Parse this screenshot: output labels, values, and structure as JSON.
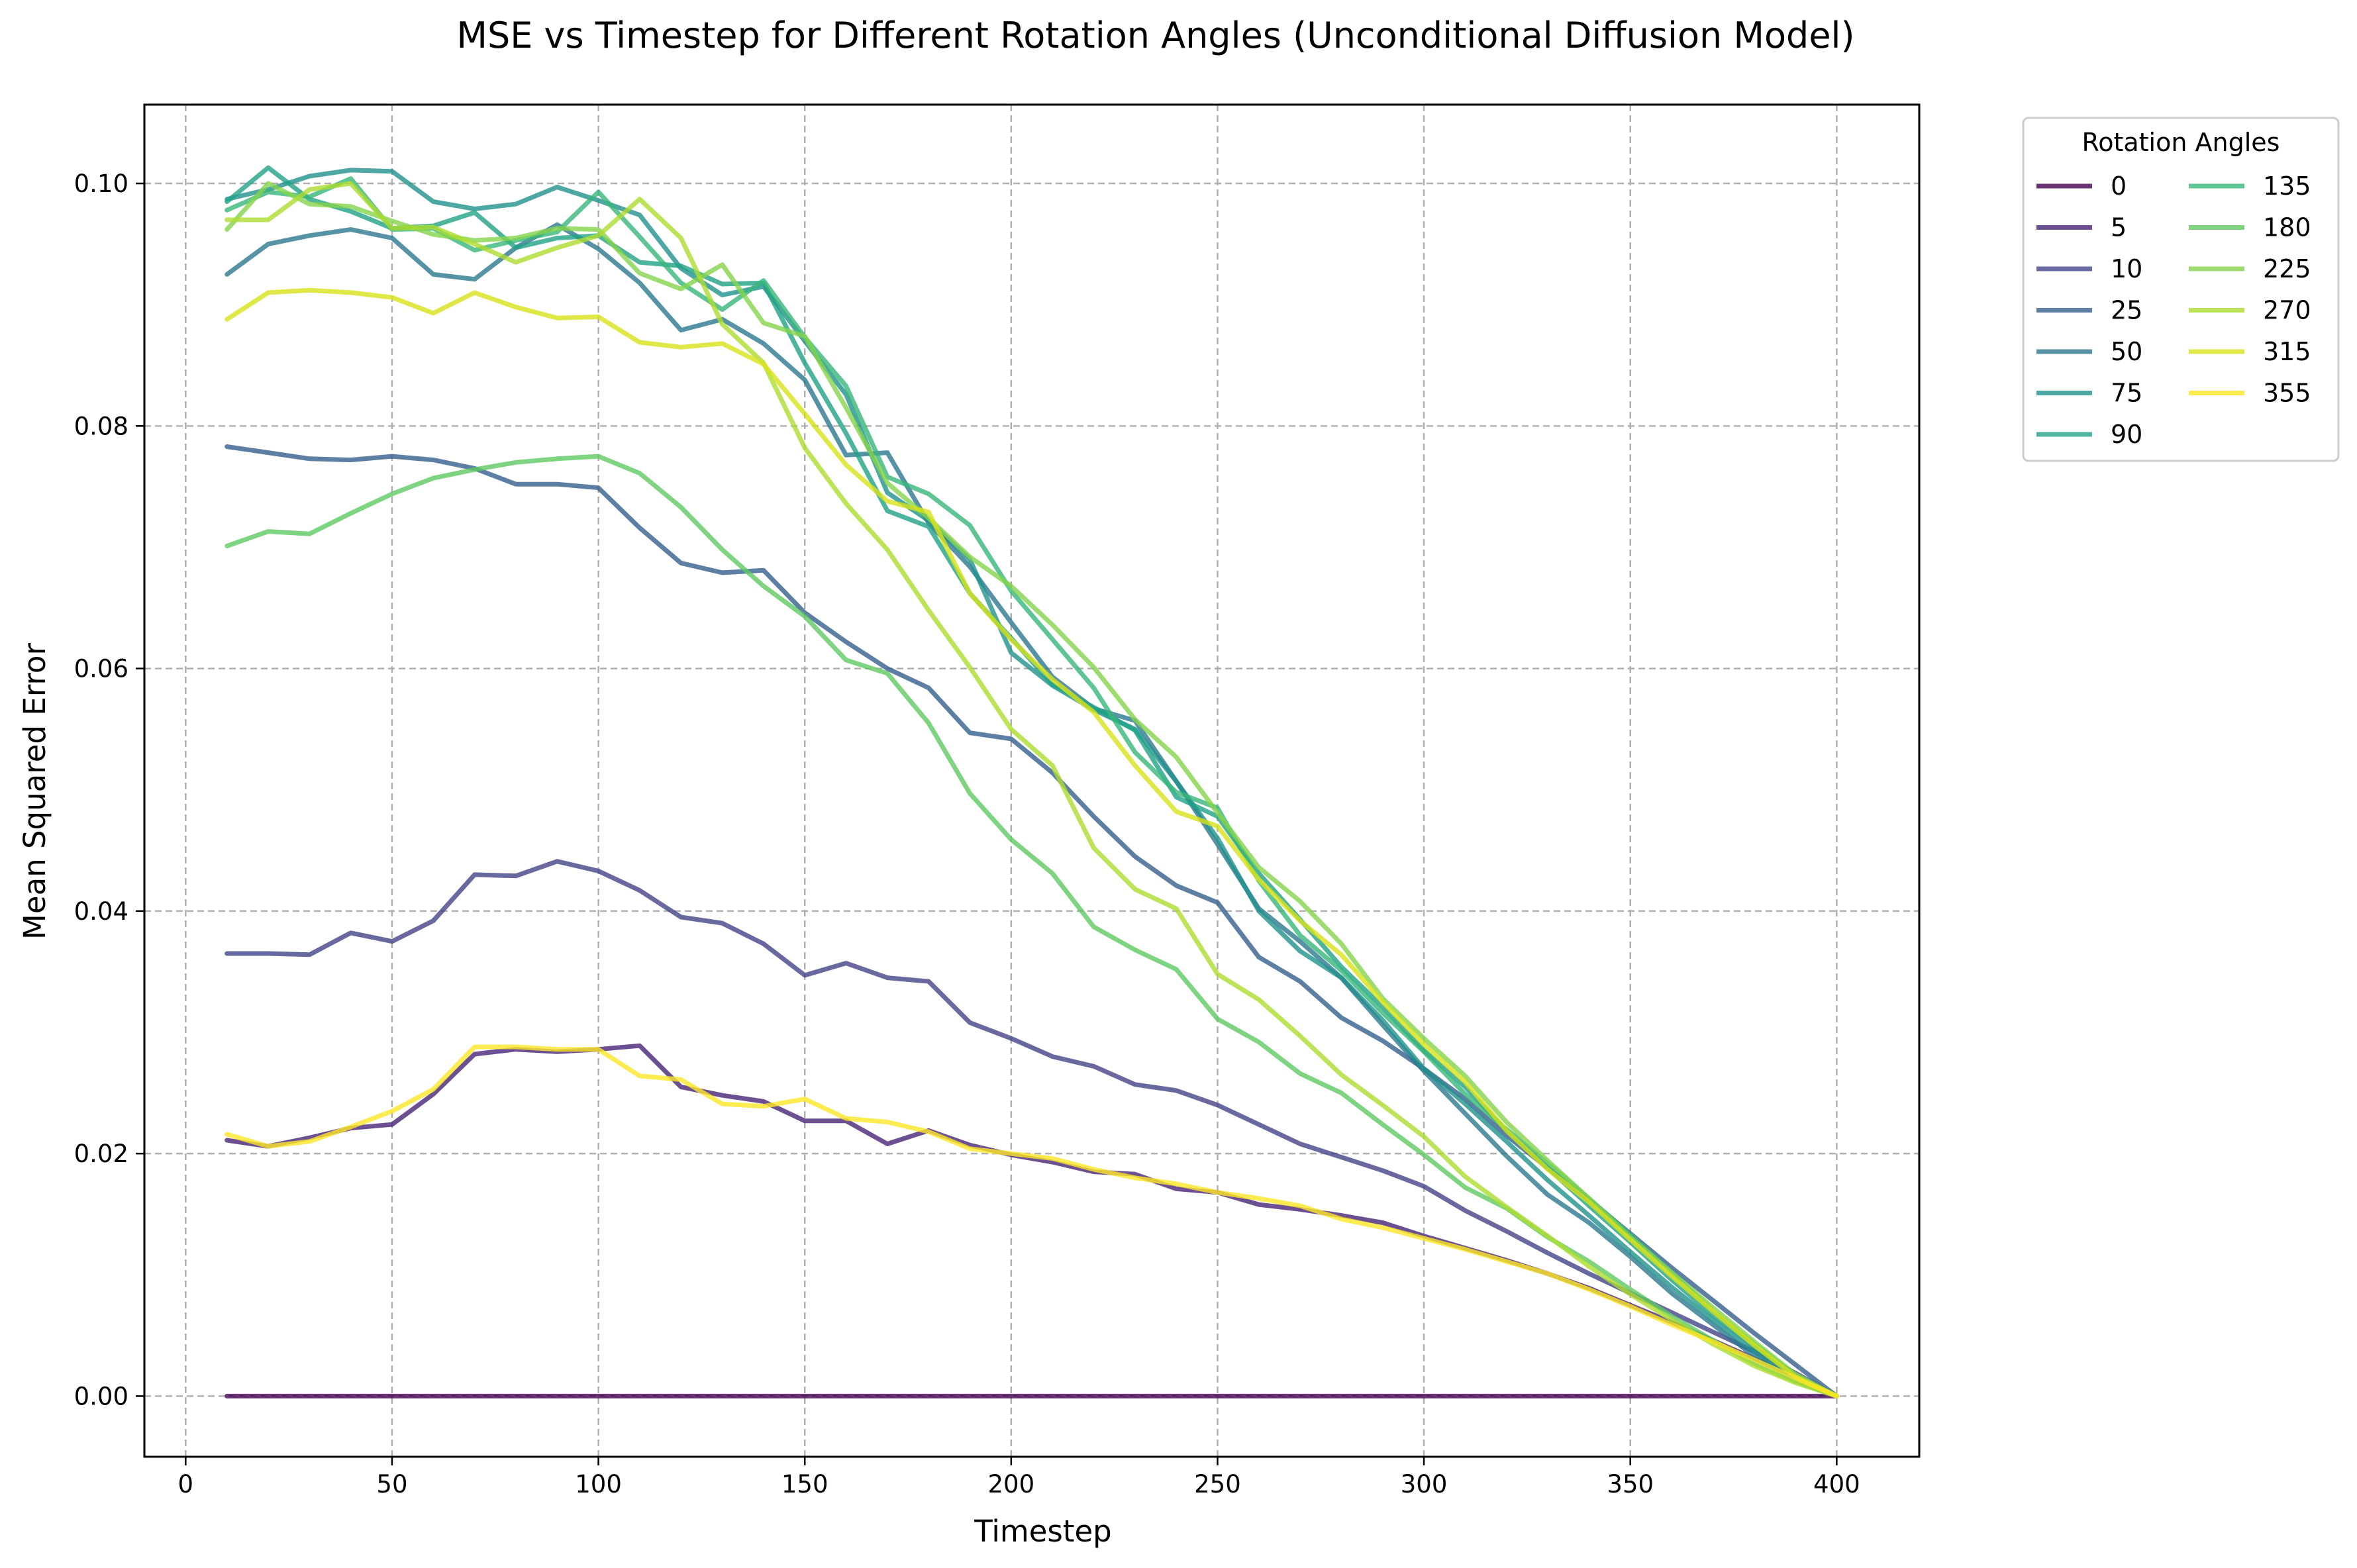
{
  "chart_data": {
    "type": "line",
    "title": "MSE vs Timestep for Different Rotation Angles (Unconditional Diffusion Model)",
    "xlabel": "Timestep",
    "ylabel": "Mean Squared Error",
    "xlim": [
      -10,
      420
    ],
    "ylim": [
      -0.005,
      0.1065
    ],
    "x_ticks": [
      0,
      50,
      100,
      150,
      200,
      250,
      300,
      350,
      400
    ],
    "y_ticks": [
      0.0,
      0.02,
      0.04,
      0.06,
      0.08,
      0.1
    ],
    "x_tick_labels": [
      "0",
      "50",
      "100",
      "150",
      "200",
      "250",
      "300",
      "350",
      "400"
    ],
    "y_tick_labels": [
      "0.00",
      "0.02",
      "0.04",
      "0.06",
      "0.08",
      "0.10"
    ],
    "grid": true,
    "legend": {
      "title": "Rotation Angles",
      "placement": "outside-right-top",
      "columns": 2
    },
    "x": [
      10,
      20,
      30,
      40,
      50,
      60,
      70,
      80,
      90,
      100,
      110,
      120,
      130,
      140,
      150,
      160,
      170,
      180,
      190,
      200,
      210,
      220,
      230,
      240,
      250,
      260,
      270,
      280,
      290,
      300,
      310,
      320,
      330,
      340,
      350,
      360,
      370,
      380,
      390,
      400
    ],
    "series": [
      {
        "name": "0",
        "color": "#440154",
        "values": [
          0,
          0,
          0,
          0,
          0,
          0,
          0,
          0,
          0,
          0,
          0,
          0,
          0,
          0,
          0,
          0,
          0,
          0,
          0,
          0,
          0,
          0,
          0,
          0,
          0,
          0,
          0,
          0,
          0,
          0,
          0,
          0,
          0,
          0,
          0,
          0,
          0,
          0,
          0,
          0
        ]
      },
      {
        "name": "5",
        "color": "#482475",
        "values": [
          0.0211,
          0.0206,
          0.0213,
          0.0221,
          0.0224,
          0.0249,
          0.0282,
          0.0286,
          0.0284,
          0.0286,
          0.0289,
          0.0255,
          0.0248,
          0.0243,
          0.0227,
          0.0227,
          0.0208,
          0.0219,
          0.0207,
          0.0199,
          0.0193,
          0.0185,
          0.0183,
          0.0171,
          0.0168,
          0.0158,
          0.0154,
          0.0149,
          0.0143,
          0.0132,
          0.0122,
          0.0112,
          0.0101,
          0.0089,
          0.0075,
          0.0061,
          0.0046,
          0.0031,
          0.0016,
          0.0
        ]
      },
      {
        "name": "10",
        "color": "#414487",
        "values": [
          0.0365,
          0.0365,
          0.0364,
          0.0382,
          0.0375,
          0.0392,
          0.043,
          0.0429,
          0.0441,
          0.0433,
          0.0417,
          0.0395,
          0.039,
          0.0373,
          0.0347,
          0.0357,
          0.0345,
          0.0342,
          0.0308,
          0.0295,
          0.028,
          0.0272,
          0.0257,
          0.0252,
          0.024,
          0.0224,
          0.0208,
          0.0197,
          0.0186,
          0.0173,
          0.0153,
          0.0136,
          0.0118,
          0.0101,
          0.0085,
          0.0069,
          0.0053,
          0.0037,
          0.0019,
          0.0
        ]
      },
      {
        "name": "25",
        "color": "#355f8d",
        "values": [
          0.0783,
          0.0778,
          0.0773,
          0.0772,
          0.0775,
          0.0772,
          0.0765,
          0.0752,
          0.0752,
          0.0749,
          0.0716,
          0.0687,
          0.0679,
          0.0681,
          0.0646,
          0.0622,
          0.06,
          0.0584,
          0.0547,
          0.0542,
          0.0514,
          0.0478,
          0.0445,
          0.0421,
          0.0407,
          0.0362,
          0.0342,
          0.0312,
          0.0293,
          0.027,
          0.0245,
          0.0215,
          0.0188,
          0.0162,
          0.0134,
          0.0106,
          0.0079,
          0.0052,
          0.0026,
          0.0
        ]
      },
      {
        "name": "50",
        "color": "#2a788e",
        "values": [
          0.0925,
          0.095,
          0.0957,
          0.0962,
          0.0955,
          0.0925,
          0.0921,
          0.0947,
          0.0966,
          0.0946,
          0.0918,
          0.0879,
          0.0888,
          0.0868,
          0.0838,
          0.0776,
          0.0778,
          0.072,
          0.0684,
          0.0638,
          0.0593,
          0.0567,
          0.0557,
          0.0507,
          0.0455,
          0.0402,
          0.0375,
          0.0345,
          0.0306,
          0.0268,
          0.0233,
          0.0198,
          0.0166,
          0.0143,
          0.0115,
          0.0085,
          0.0059,
          0.0033,
          0.0013,
          0.0
        ]
      },
      {
        "name": "75",
        "color": "#21918c",
        "values": [
          0.0987,
          0.0995,
          0.1006,
          0.1011,
          0.101,
          0.0985,
          0.0979,
          0.0983,
          0.0997,
          0.0986,
          0.0974,
          0.093,
          0.0908,
          0.0915,
          0.087,
          0.0826,
          0.0745,
          0.0722,
          0.069,
          0.0613,
          0.0586,
          0.0566,
          0.055,
          0.0507,
          0.046,
          0.04,
          0.0367,
          0.0345,
          0.031,
          0.027,
          0.0241,
          0.021,
          0.0178,
          0.0149,
          0.0119,
          0.009,
          0.0063,
          0.0037,
          0.0015,
          0.0
        ]
      },
      {
        "name": "90",
        "color": "#20a386",
        "values": [
          0.0985,
          0.1013,
          0.0987,
          0.0977,
          0.0963,
          0.0965,
          0.0976,
          0.0947,
          0.0955,
          0.0957,
          0.0935,
          0.0932,
          0.0917,
          0.0918,
          0.0852,
          0.0794,
          0.073,
          0.0717,
          0.0662,
          0.0625,
          0.0587,
          0.0568,
          0.0549,
          0.0494,
          0.0478,
          0.0431,
          0.0393,
          0.0354,
          0.0321,
          0.0285,
          0.0255,
          0.0219,
          0.0188,
          0.0157,
          0.0127,
          0.0096,
          0.0067,
          0.0041,
          0.0016,
          0.0
        ]
      },
      {
        "name": "135",
        "color": "#37b679",
        "values": [
          0.0978,
          0.0993,
          0.0989,
          0.1004,
          0.0962,
          0.0963,
          0.0945,
          0.0953,
          0.096,
          0.0993,
          0.0956,
          0.0918,
          0.0896,
          0.092,
          0.0873,
          0.0833,
          0.0758,
          0.0744,
          0.0718,
          0.0664,
          0.0624,
          0.0584,
          0.0531,
          0.0498,
          0.0485,
          0.0425,
          0.038,
          0.0351,
          0.0316,
          0.0284,
          0.0249,
          0.022,
          0.0192,
          0.0163,
          0.0133,
          0.0102,
          0.007,
          0.0043,
          0.0017,
          0.0
        ]
      },
      {
        "name": "180",
        "color": "#5ec962",
        "values": [
          0.0701,
          0.0713,
          0.0711,
          0.0728,
          0.0744,
          0.0757,
          0.0764,
          0.077,
          0.0773,
          0.0775,
          0.0761,
          0.0733,
          0.0698,
          0.0668,
          0.0643,
          0.0607,
          0.0596,
          0.0555,
          0.0497,
          0.0459,
          0.0431,
          0.0387,
          0.0368,
          0.0352,
          0.0311,
          0.0292,
          0.0266,
          0.025,
          0.0224,
          0.0199,
          0.0172,
          0.0155,
          0.0131,
          0.0111,
          0.0088,
          0.0066,
          0.0046,
          0.0027,
          0.0012,
          0.0
        ]
      },
      {
        "name": "225",
        "color": "#84d44b",
        "values": [
          0.0962,
          0.1,
          0.0983,
          0.0981,
          0.0969,
          0.0958,
          0.0953,
          0.0955,
          0.0963,
          0.0962,
          0.0926,
          0.0913,
          0.0933,
          0.0885,
          0.0874,
          0.0815,
          0.0753,
          0.0724,
          0.0692,
          0.0668,
          0.0636,
          0.0601,
          0.0558,
          0.0527,
          0.0481,
          0.0436,
          0.0408,
          0.0373,
          0.0328,
          0.0295,
          0.0264,
          0.0226,
          0.0194,
          0.0163,
          0.0131,
          0.0102,
          0.0073,
          0.0045,
          0.0018,
          0.0
        ]
      },
      {
        "name": "270",
        "color": "#addc30",
        "values": [
          0.097,
          0.097,
          0.0995,
          0.1,
          0.0963,
          0.0964,
          0.095,
          0.0935,
          0.0947,
          0.0957,
          0.0987,
          0.0955,
          0.0884,
          0.0852,
          0.0782,
          0.0736,
          0.0698,
          0.0648,
          0.0601,
          0.055,
          0.052,
          0.0452,
          0.0418,
          0.0402,
          0.0348,
          0.0327,
          0.0297,
          0.0265,
          0.024,
          0.0214,
          0.0181,
          0.0156,
          0.0132,
          0.0107,
          0.0084,
          0.0063,
          0.0043,
          0.0025,
          0.0011,
          0.0
        ]
      },
      {
        "name": "315",
        "color": "#d8e219",
        "values": [
          0.0888,
          0.091,
          0.0912,
          0.091,
          0.0906,
          0.0893,
          0.091,
          0.0898,
          0.0889,
          0.089,
          0.0869,
          0.0865,
          0.0868,
          0.0851,
          0.081,
          0.0768,
          0.0738,
          0.0729,
          0.0662,
          0.0624,
          0.0591,
          0.0564,
          0.052,
          0.0482,
          0.047,
          0.0426,
          0.0392,
          0.0364,
          0.0325,
          0.029,
          0.0259,
          0.0219,
          0.0187,
          0.016,
          0.0129,
          0.0099,
          0.007,
          0.0042,
          0.0016,
          0.0
        ]
      },
      {
        "name": "355",
        "color": "#fde725",
        "values": [
          0.0216,
          0.0206,
          0.021,
          0.0222,
          0.0235,
          0.0253,
          0.0288,
          0.0288,
          0.0286,
          0.0286,
          0.0264,
          0.0261,
          0.0241,
          0.0239,
          0.0245,
          0.0229,
          0.0226,
          0.0218,
          0.0204,
          0.02,
          0.0196,
          0.0187,
          0.018,
          0.0175,
          0.0168,
          0.0163,
          0.0157,
          0.0146,
          0.0139,
          0.013,
          0.0121,
          0.0111,
          0.0101,
          0.0088,
          0.0074,
          0.0059,
          0.0045,
          0.003,
          0.0015,
          0.0
        ]
      }
    ]
  }
}
